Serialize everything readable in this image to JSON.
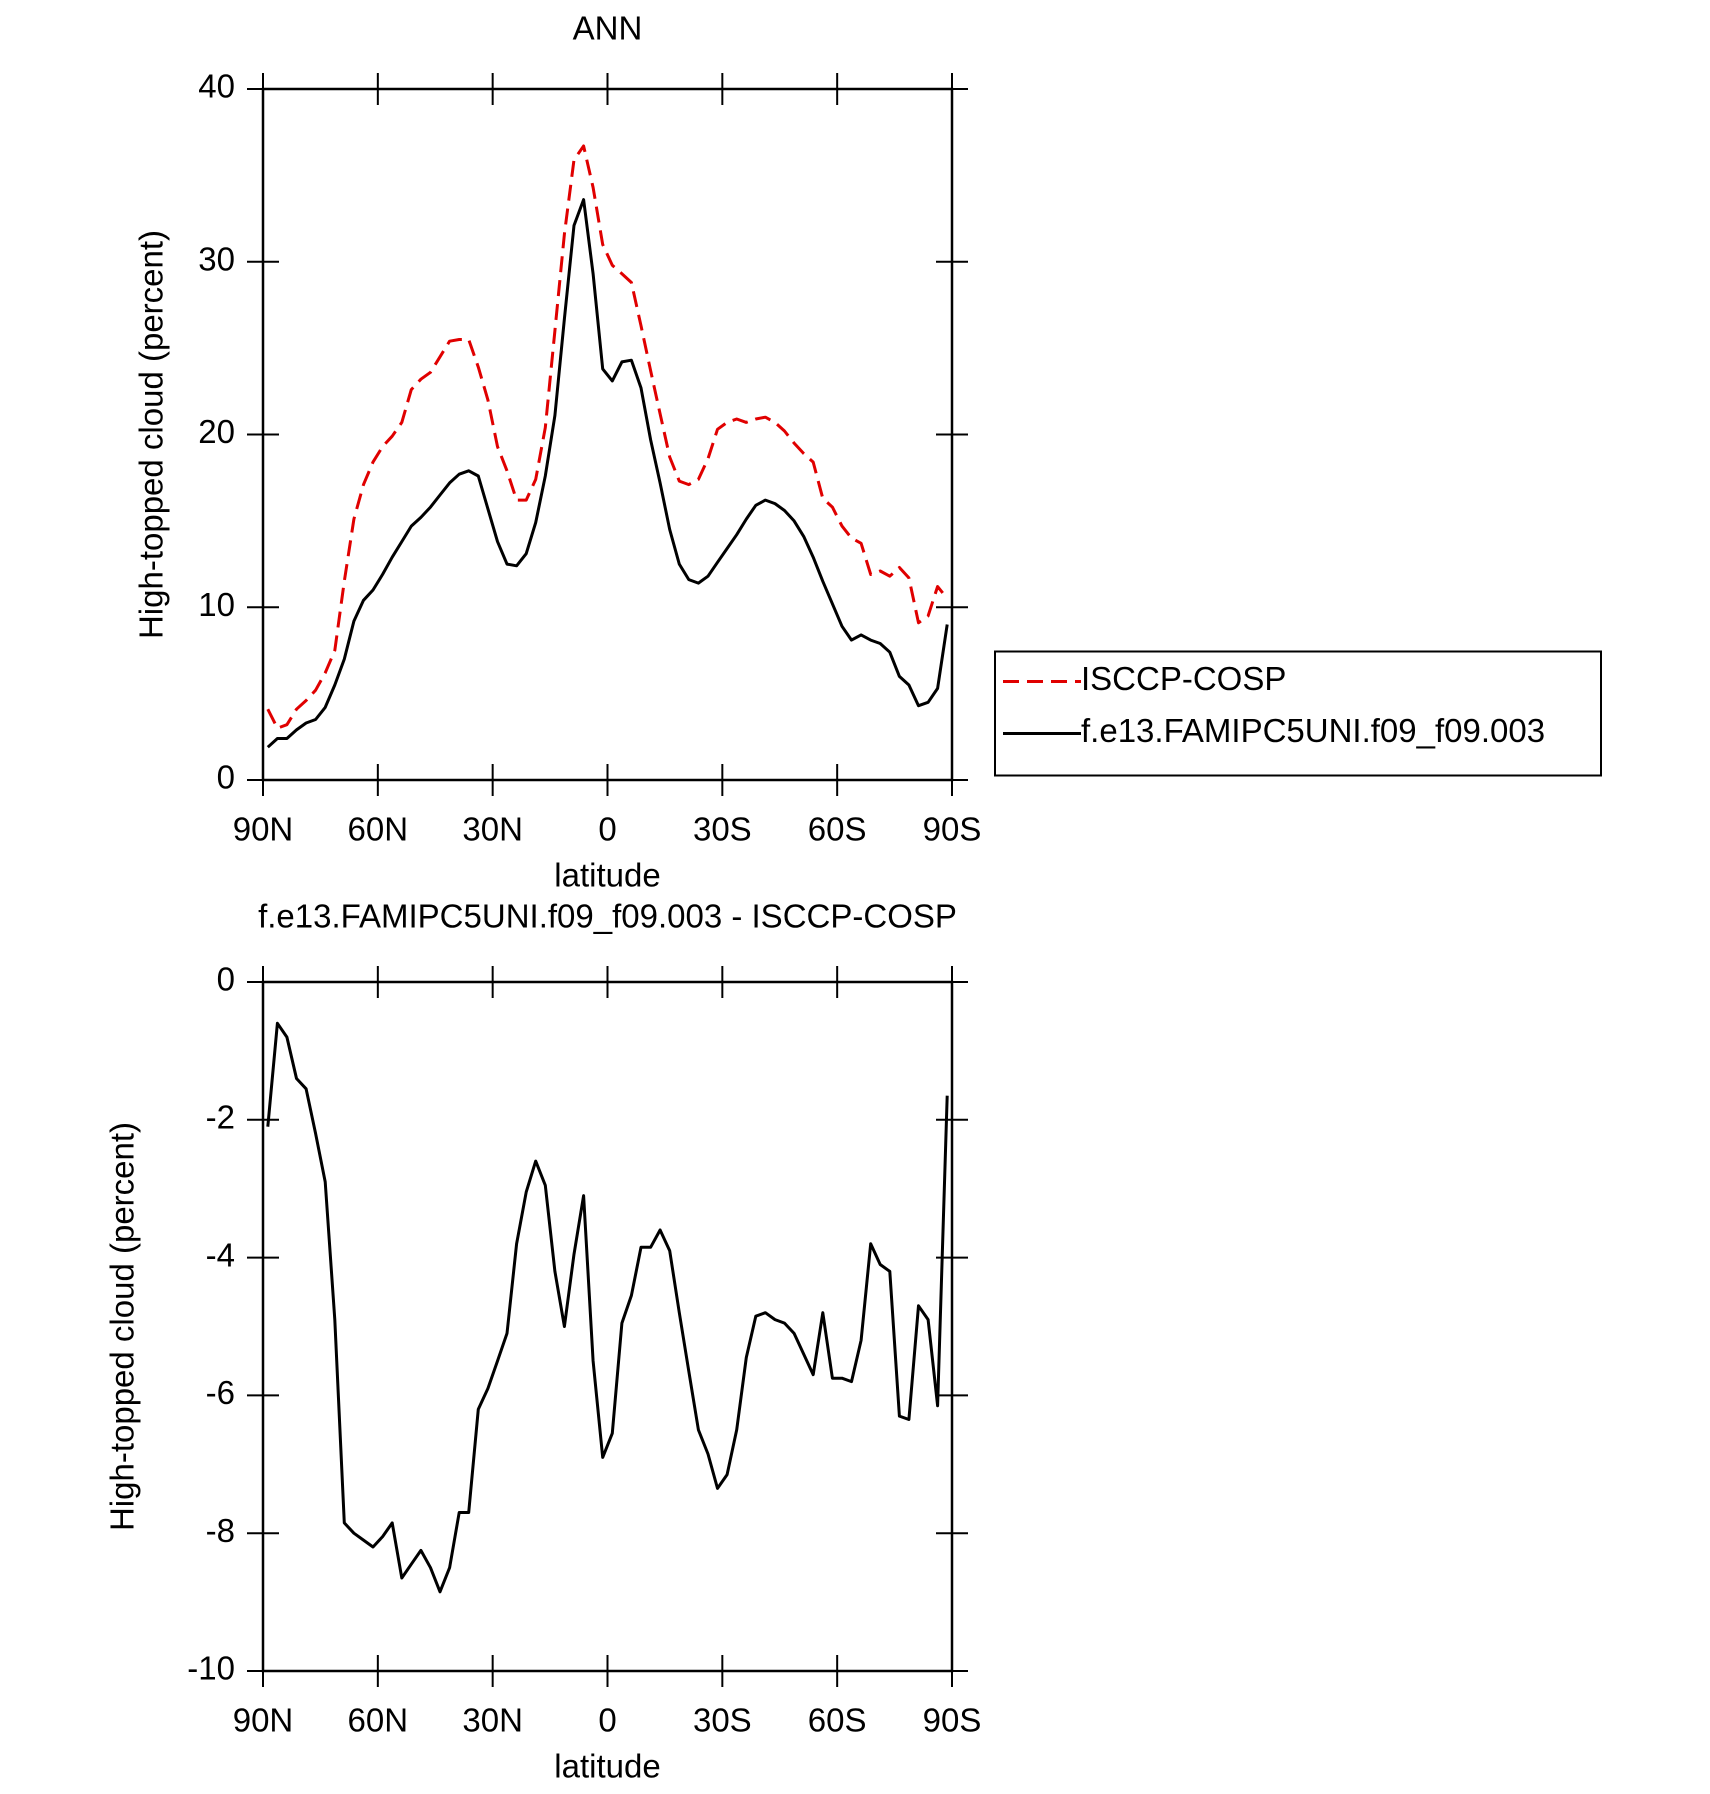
{
  "chart_data": [
    {
      "type": "line",
      "title": "ANN",
      "xlabel": "latitude",
      "ylabel": "High-topped cloud (percent)",
      "x": [
        88.75,
        86.25,
        83.75,
        81.25,
        78.75,
        76.25,
        73.75,
        71.25,
        68.75,
        66.25,
        63.75,
        61.25,
        58.75,
        56.25,
        53.75,
        51.25,
        48.75,
        46.25,
        43.75,
        41.25,
        38.75,
        36.25,
        33.75,
        31.25,
        28.75,
        26.25,
        23.75,
        21.25,
        18.75,
        16.25,
        13.75,
        11.25,
        8.75,
        6.25,
        3.75,
        1.25,
        -1.25,
        -3.75,
        -6.25,
        -8.75,
        -11.25,
        -13.75,
        -16.25,
        -18.75,
        -21.25,
        -23.75,
        -26.25,
        -28.75,
        -31.25,
        -33.75,
        -36.25,
        -38.75,
        -41.25,
        -43.75,
        -46.25,
        -48.75,
        -51.25,
        -53.75,
        -56.25,
        -58.75,
        -61.25,
        -63.75,
        -66.25,
        -68.75,
        -71.25,
        -73.75,
        -76.25,
        -78.75,
        -81.25,
        -83.75,
        -86.25,
        -88.75
      ],
      "series": [
        {
          "name": "ISCCP-COSP",
          "color": "#e00000",
          "dashed": true,
          "values": [
            4.1,
            3.0,
            3.2,
            4.1,
            4.6,
            5.2,
            6.2,
            7.5,
            11.5,
            15.1,
            17.1,
            18.4,
            19.3,
            19.9,
            20.7,
            22.6,
            23.2,
            23.6,
            24.5,
            25.4,
            25.5,
            25.5,
            23.9,
            22.0,
            19.3,
            17.9,
            16.2,
            16.2,
            17.4,
            20.4,
            26.0,
            31.6,
            35.9,
            36.7,
            34.3,
            31.0,
            29.8,
            29.3,
            28.8,
            26.3,
            23.7,
            21.2,
            18.7,
            17.3,
            17.1,
            17.4,
            18.6,
            20.3,
            20.7,
            20.9,
            20.7,
            20.9,
            21.0,
            20.7,
            20.2,
            19.5,
            18.9,
            18.4,
            16.3,
            15.8,
            14.7,
            14.0,
            13.7,
            11.9,
            12.1,
            11.8,
            12.3,
            11.7,
            9.1,
            9.5,
            11.2,
            10.5
          ]
        },
        {
          "name": "f.e13.FAMIPC5UNI.f09_f09.003",
          "color": "#000000",
          "dashed": false,
          "values": [
            1.9,
            2.4,
            2.4,
            2.9,
            3.3,
            3.5,
            4.2,
            5.5,
            7.0,
            9.2,
            10.4,
            11.0,
            11.9,
            12.9,
            13.8,
            14.7,
            15.2,
            15.8,
            16.5,
            17.2,
            17.7,
            17.9,
            17.6,
            15.7,
            13.8,
            12.5,
            12.4,
            13.1,
            14.9,
            17.6,
            21.1,
            26.7,
            32.1,
            33.6,
            29.3,
            23.8,
            23.1,
            24.2,
            24.3,
            22.7,
            19.7,
            17.2,
            14.5,
            12.5,
            11.6,
            11.4,
            11.8,
            12.6,
            13.4,
            14.2,
            15.1,
            15.9,
            16.2,
            16.0,
            15.6,
            15.0,
            14.1,
            12.9,
            11.5,
            10.2,
            8.9,
            8.1,
            8.4,
            8.1,
            7.9,
            7.4,
            6.0,
            5.5,
            4.3,
            4.5,
            5.3,
            9.0
          ]
        }
      ],
      "xlim": [
        90,
        -90
      ],
      "xticks": [
        {
          "value": 90,
          "label": "90N"
        },
        {
          "value": 60,
          "label": "60N"
        },
        {
          "value": 30,
          "label": "30N"
        },
        0,
        {
          "value": -30,
          "label": "30S"
        },
        {
          "value": -60,
          "label": "60S"
        },
        {
          "value": -90,
          "label": "90S"
        }
      ],
      "ylim": [
        0,
        40
      ],
      "yticks": [
        0,
        10,
        20,
        30,
        40
      ],
      "legend": "right"
    },
    {
      "type": "line",
      "title": "f.e13.FAMIPC5UNI.f09_f09.003 - ISCCP-COSP",
      "xlabel": "latitude",
      "ylabel": "High-topped cloud (percent)",
      "x": [
        88.75,
        86.25,
        83.75,
        81.25,
        78.75,
        76.25,
        73.75,
        71.25,
        68.75,
        66.25,
        63.75,
        61.25,
        58.75,
        56.25,
        53.75,
        51.25,
        48.75,
        46.25,
        43.75,
        41.25,
        38.75,
        36.25,
        33.75,
        31.25,
        28.75,
        26.25,
        23.75,
        21.25,
        18.75,
        16.25,
        13.75,
        11.25,
        8.75,
        6.25,
        3.75,
        1.25,
        -1.25,
        -3.75,
        -6.25,
        -8.75,
        -11.25,
        -13.75,
        -16.25,
        -18.75,
        -21.25,
        -23.75,
        -26.25,
        -28.75,
        -31.25,
        -33.75,
        -36.25,
        -38.75,
        -41.25,
        -43.75,
        -46.25,
        -48.75,
        -51.25,
        -53.75,
        -56.25,
        -58.75,
        -61.25,
        -63.75,
        -66.25,
        -68.75,
        -71.25,
        -73.75,
        -76.25,
        -78.75,
        -81.25,
        -83.75,
        -86.25,
        -88.75
      ],
      "series": [
        {
          "color": "#000000",
          "dashed": false,
          "values": [
            -2.1,
            -0.6,
            -0.8,
            -1.4,
            -1.55,
            -2.2,
            -2.9,
            -4.9,
            -7.85,
            -8.0,
            -8.1,
            -8.2,
            -8.05,
            -7.85,
            -8.65,
            -8.45,
            -8.25,
            -8.5,
            -8.85,
            -8.5,
            -7.7,
            -7.7,
            -6.2,
            -5.9,
            -5.5,
            -5.1,
            -3.8,
            -3.05,
            -2.6,
            -2.95,
            -4.2,
            -5.0,
            -3.95,
            -3.1,
            -5.5,
            -6.9,
            -6.55,
            -4.95,
            -4.55,
            -3.85,
            -3.85,
            -3.6,
            -3.9,
            -4.8,
            -5.65,
            -6.5,
            -6.85,
            -7.35,
            -7.15,
            -6.5,
            -5.45,
            -4.85,
            -4.8,
            -4.9,
            -4.95,
            -5.1,
            -5.4,
            -5.7,
            -4.8,
            -5.75,
            -5.75,
            -5.8,
            -5.2,
            -3.8,
            -4.1,
            -4.2,
            -6.3,
            -6.35,
            -4.7,
            -4.9,
            -6.15,
            -1.65
          ]
        }
      ],
      "xlim": [
        90,
        -90
      ],
      "xticks": [
        {
          "value": 90,
          "label": "90N"
        },
        {
          "value": 60,
          "label": "60N"
        },
        {
          "value": 30,
          "label": "30N"
        },
        0,
        {
          "value": -30,
          "label": "30S"
        },
        {
          "value": -60,
          "label": "60S"
        },
        {
          "value": -90,
          "label": "90S"
        }
      ],
      "ylim": [
        -10,
        0
      ],
      "yticks": [
        -10,
        -8,
        -6,
        -4,
        -2,
        0
      ]
    }
  ]
}
